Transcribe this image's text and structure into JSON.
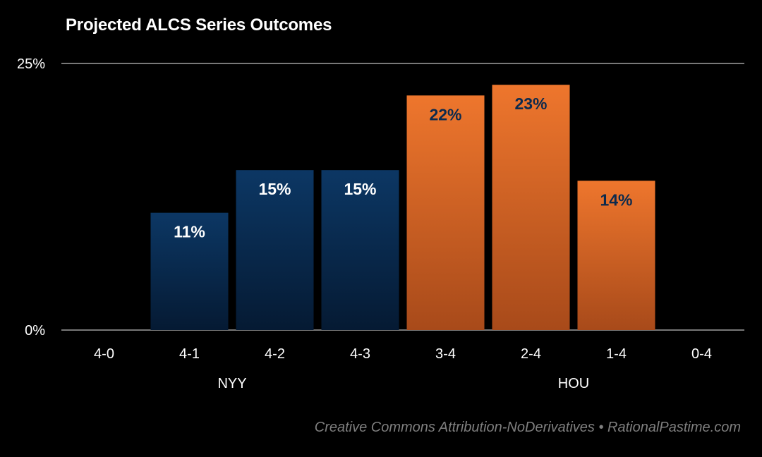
{
  "chart_data": {
    "type": "bar",
    "title": "Projected ALCS Series Outcomes",
    "categories": [
      "4-0",
      "4-1",
      "4-2",
      "4-3",
      "3-4",
      "2-4",
      "1-4",
      "0-4"
    ],
    "values": [
      0,
      11,
      15,
      15,
      22,
      23,
      14,
      0
    ],
    "data_labels": [
      "",
      "11%",
      "15%",
      "15%",
      "22%",
      "23%",
      "14%",
      ""
    ],
    "ylim": [
      0,
      25
    ],
    "yticks": [
      0,
      25
    ],
    "ytick_labels": [
      "0%",
      "25%"
    ],
    "grid": false,
    "xlabel": "",
    "ylabel": "",
    "groups": [
      {
        "name": "NYY",
        "categories": [
          "4-0",
          "4-1",
          "4-2",
          "4-3"
        ],
        "color": "#0c3764"
      },
      {
        "name": "HOU",
        "categories": [
          "3-4",
          "2-4",
          "1-4",
          "0-4"
        ],
        "color": "#e8712b"
      }
    ],
    "colors": {
      "nyy_top": "#0c3764",
      "nyy_bottom": "#051a33",
      "hou_top": "#ee762d",
      "hou_bottom": "#a84a1a",
      "nyy_label": "#ffffff",
      "hou_label": "#0c2a4d",
      "axis": "#bfbfbf"
    }
  },
  "footer": "Creative Commons Attribution-NoDerivatives • RationalPastime.com"
}
